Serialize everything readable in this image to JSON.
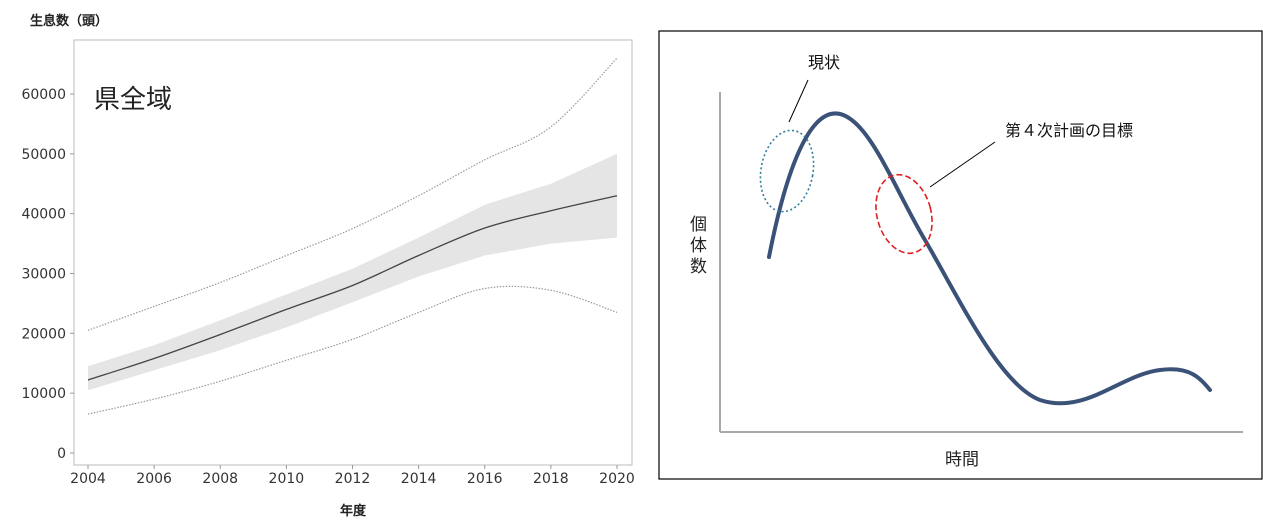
{
  "chart_data": [
    {
      "type": "line",
      "ylabel": "生息数（頭）",
      "xlabel": "年度",
      "annotation": "県全域",
      "x_ticks": [
        "2004",
        "2006",
        "2008",
        "2010",
        "2012",
        "2014",
        "2016",
        "2018",
        "2020"
      ],
      "y_ticks": [
        "0",
        "10000",
        "20000",
        "30000",
        "40000",
        "50000",
        "60000"
      ],
      "xlim": [
        2004,
        2020
      ],
      "ylim": [
        -1000,
        69000
      ],
      "grid": false,
      "x": [
        2004,
        2006,
        2008,
        2010,
        2012,
        2014,
        2016,
        2018,
        2020
      ],
      "series": [
        {
          "role": "estimate",
          "values": [
            12200,
            15800,
            19800,
            24000,
            28000,
            33000,
            37600,
            40500,
            43000
          ]
        },
        {
          "role": "confidence-band-lower",
          "values": [
            10500,
            13800,
            17200,
            21000,
            25200,
            29500,
            33000,
            35000,
            36000
          ]
        },
        {
          "role": "confidence-band-upper",
          "values": [
            14500,
            18000,
            22200,
            26500,
            30800,
            36000,
            41500,
            45000,
            50000
          ]
        },
        {
          "role": "outer-interval-upper",
          "values": [
            20500,
            24500,
            28500,
            33000,
            37500,
            43000,
            49000,
            54500,
            66000
          ]
        },
        {
          "role": "outer-interval-lower",
          "values": [
            6500,
            9000,
            12000,
            15500,
            19000,
            23500,
            27500,
            27200,
            23500
          ]
        }
      ],
      "colors": {
        "estimate": "#444444",
        "band": "#e5e5e5",
        "interval": "#999999"
      }
    },
    {
      "type": "line",
      "xlabel": "時間",
      "ylabel": "個体数",
      "annotations": [
        "現状",
        "第４次計画の目標"
      ],
      "colors": {
        "curve": "#3a5278",
        "current": "#2f7d99",
        "target": "#e02020"
      }
    }
  ]
}
